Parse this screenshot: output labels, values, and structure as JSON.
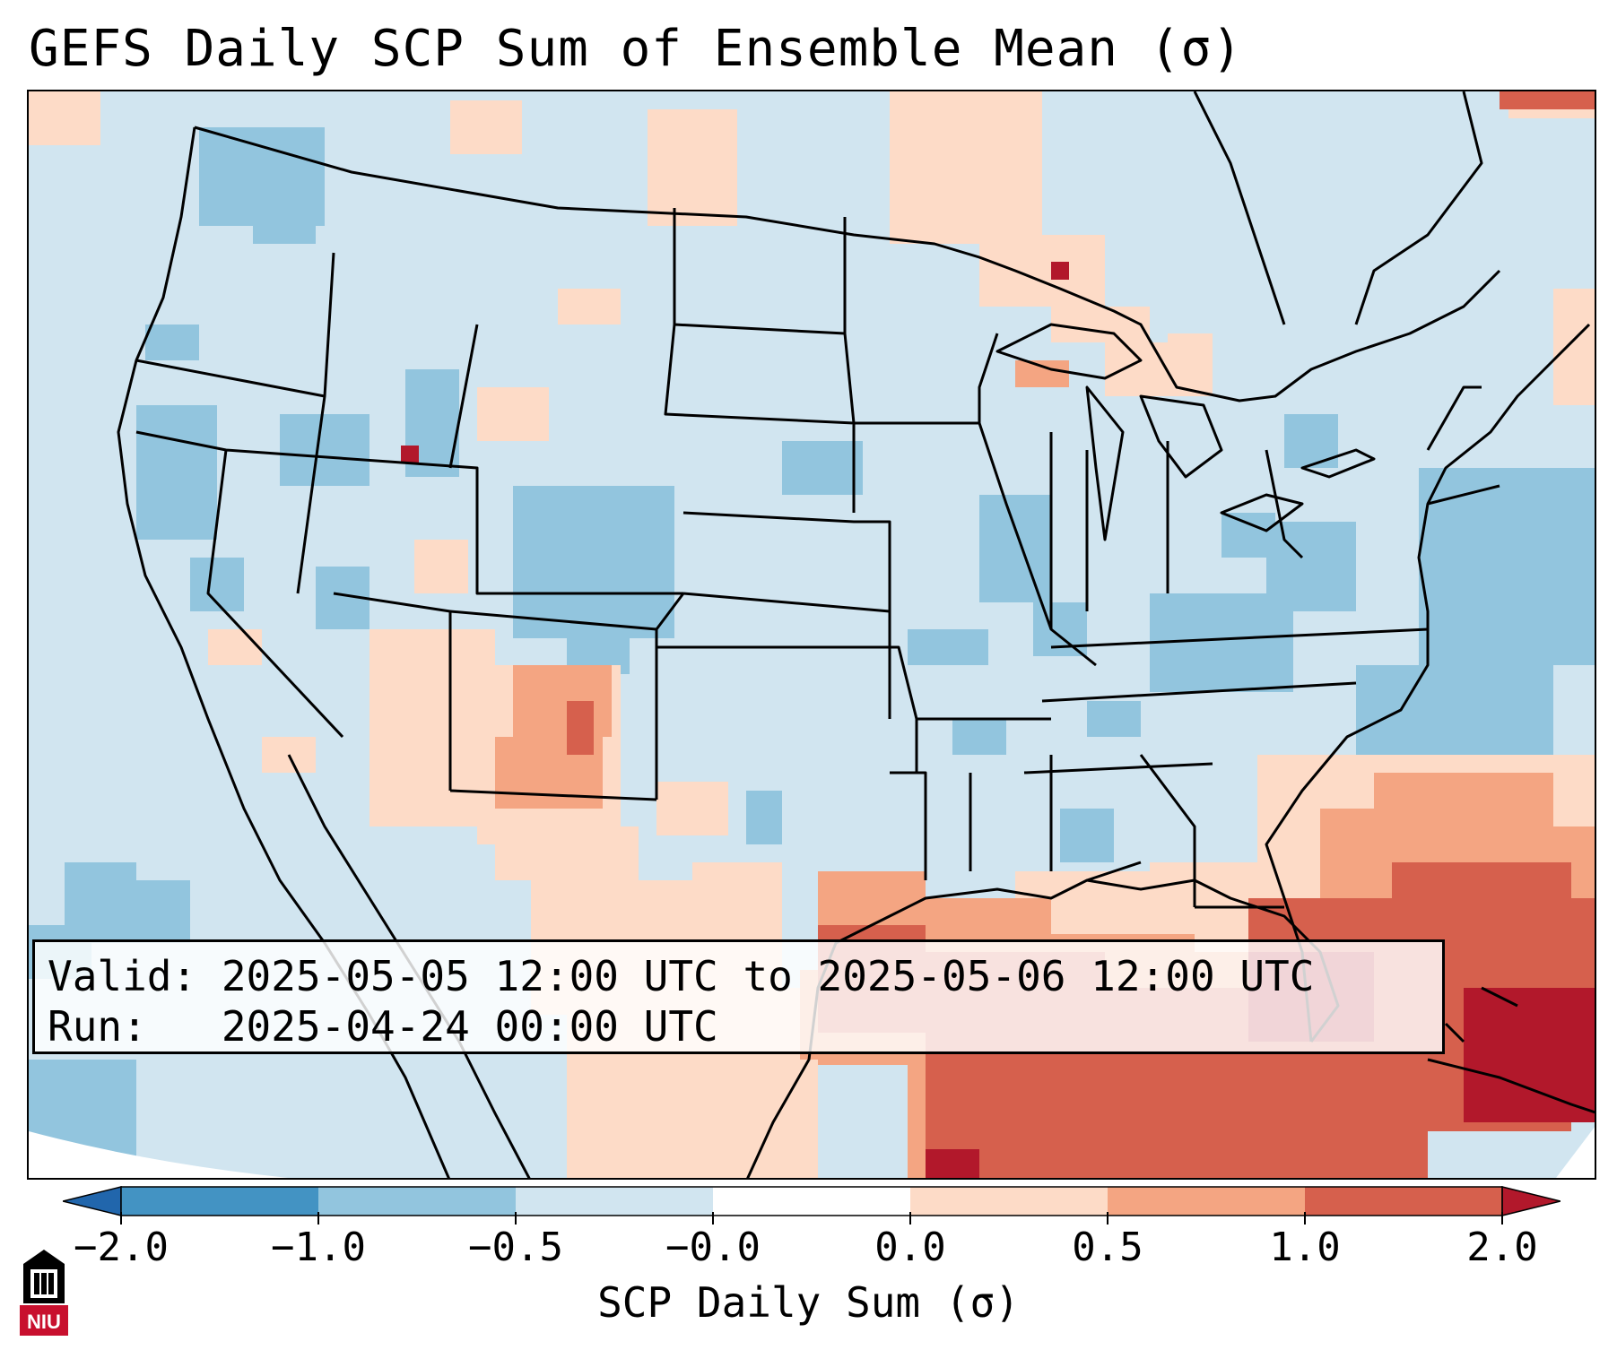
{
  "title": "GEFS Daily SCP Sum of Ensemble Mean (σ)",
  "info": {
    "valid_line": "Valid: 2025-05-05 12:00 UTC to 2025-05-06 12:00 UTC",
    "run_line": "Run:   2025-04-24 00:00 UTC"
  },
  "colorbar": {
    "title": "SCP Daily Sum (σ)",
    "ticks": [
      "−2.0",
      "−1.0",
      "−0.5",
      "−0.0",
      "0.0",
      "0.5",
      "1.0",
      "2.0"
    ],
    "colors": [
      "#2166ac",
      "#4393c3",
      "#92c5de",
      "#d1e5f0",
      "#ffffff",
      "#fddbc7",
      "#f4a582",
      "#d6604d",
      "#b2182b"
    ],
    "extend": "both"
  },
  "map": {
    "background_color": "#d1e5f0",
    "region": "Contiguous United States"
  },
  "logo": {
    "text": "NIU"
  }
}
